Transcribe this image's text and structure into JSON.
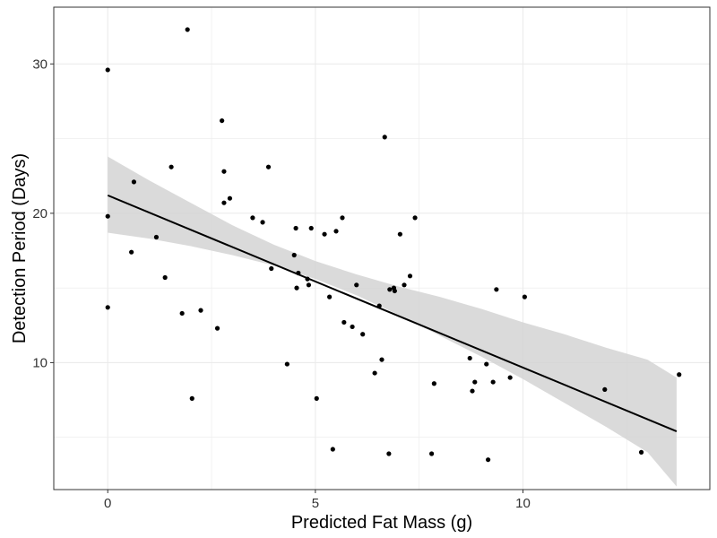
{
  "chart_data": {
    "type": "scatter",
    "title": "",
    "xlabel": "Predicted Fat Mass (g)",
    "ylabel": "Detection Period (Days)",
    "xlim": [
      -1.3,
      14.5
    ],
    "ylim": [
      1.5,
      33.8
    ],
    "x_ticks": [
      0,
      5,
      10
    ],
    "y_ticks": [
      10,
      20,
      30
    ],
    "x_minor_ticks": [
      2.5,
      7.5,
      12.5
    ],
    "y_minor_ticks": [
      5,
      15,
      25
    ],
    "grid": true,
    "legend": "none",
    "colors": {
      "point": "#000000",
      "line": "#000000",
      "band": "#d3d3d3",
      "grid": "#ebebeb",
      "border": "#333333"
    },
    "points": [
      {
        "x": 0.0,
        "y": 29.6
      },
      {
        "x": 0.0,
        "y": 19.8
      },
      {
        "x": 0.0,
        "y": 13.7
      },
      {
        "x": 0.57,
        "y": 17.4
      },
      {
        "x": 0.63,
        "y": 22.1
      },
      {
        "x": 1.17,
        "y": 18.4
      },
      {
        "x": 1.38,
        "y": 15.7
      },
      {
        "x": 1.53,
        "y": 23.1
      },
      {
        "x": 1.79,
        "y": 13.3
      },
      {
        "x": 1.92,
        "y": 32.3
      },
      {
        "x": 2.03,
        "y": 7.6
      },
      {
        "x": 2.24,
        "y": 13.5
      },
      {
        "x": 2.64,
        "y": 12.3
      },
      {
        "x": 2.75,
        "y": 26.2
      },
      {
        "x": 2.8,
        "y": 22.8
      },
      {
        "x": 2.8,
        "y": 20.7
      },
      {
        "x": 2.94,
        "y": 21.0
      },
      {
        "x": 3.49,
        "y": 19.7
      },
      {
        "x": 3.73,
        "y": 19.4
      },
      {
        "x": 3.87,
        "y": 23.1
      },
      {
        "x": 3.94,
        "y": 16.3
      },
      {
        "x": 4.32,
        "y": 9.9
      },
      {
        "x": 4.49,
        "y": 17.2
      },
      {
        "x": 4.53,
        "y": 19.0
      },
      {
        "x": 4.55,
        "y": 15.0
      },
      {
        "x": 4.59,
        "y": 16.0
      },
      {
        "x": 4.81,
        "y": 15.6
      },
      {
        "x": 4.84,
        "y": 15.2
      },
      {
        "x": 4.9,
        "y": 19.0
      },
      {
        "x": 5.03,
        "y": 7.6
      },
      {
        "x": 5.22,
        "y": 18.6
      },
      {
        "x": 5.34,
        "y": 14.4
      },
      {
        "x": 5.42,
        "y": 4.2
      },
      {
        "x": 5.5,
        "y": 18.8
      },
      {
        "x": 5.65,
        "y": 19.7
      },
      {
        "x": 5.69,
        "y": 12.7
      },
      {
        "x": 5.89,
        "y": 12.4
      },
      {
        "x": 5.99,
        "y": 15.2
      },
      {
        "x": 6.14,
        "y": 11.9
      },
      {
        "x": 6.43,
        "y": 9.3
      },
      {
        "x": 6.54,
        "y": 13.8
      },
      {
        "x": 6.6,
        "y": 10.2
      },
      {
        "x": 6.67,
        "y": 25.1
      },
      {
        "x": 6.77,
        "y": 3.9
      },
      {
        "x": 6.79,
        "y": 14.9
      },
      {
        "x": 6.89,
        "y": 15.0
      },
      {
        "x": 6.91,
        "y": 14.8
      },
      {
        "x": 7.04,
        "y": 18.6
      },
      {
        "x": 7.14,
        "y": 15.2
      },
      {
        "x": 7.28,
        "y": 15.8
      },
      {
        "x": 7.4,
        "y": 19.7
      },
      {
        "x": 7.8,
        "y": 3.9
      },
      {
        "x": 7.86,
        "y": 8.6
      },
      {
        "x": 8.72,
        "y": 10.3
      },
      {
        "x": 8.78,
        "y": 8.1
      },
      {
        "x": 8.84,
        "y": 8.7
      },
      {
        "x": 9.12,
        "y": 9.9
      },
      {
        "x": 9.16,
        "y": 3.5
      },
      {
        "x": 9.28,
        "y": 8.7
      },
      {
        "x": 9.36,
        "y": 14.9
      },
      {
        "x": 9.69,
        "y": 9.0
      },
      {
        "x": 10.04,
        "y": 14.4
      },
      {
        "x": 11.97,
        "y": 8.2
      },
      {
        "x": 12.85,
        "y": 4.0
      },
      {
        "x": 13.76,
        "y": 9.2
      }
    ],
    "fit_line": {
      "x": [
        0,
        13.7
      ],
      "y": [
        21.2,
        5.4
      ]
    },
    "confidence_band": {
      "x": [
        0,
        1.0,
        2.0,
        3.0,
        4.0,
        5.0,
        6.0,
        7.0,
        8.0,
        9.0,
        10.0,
        11.0,
        12.0,
        13.0,
        13.7
      ],
      "lower": [
        18.7,
        18.3,
        17.8,
        17.2,
        16.5,
        15.6,
        14.5,
        13.2,
        11.8,
        10.4,
        8.9,
        7.3,
        5.7,
        4.0,
        1.7
      ],
      "upper": [
        23.8,
        22.2,
        20.7,
        19.2,
        17.9,
        16.8,
        15.9,
        15.1,
        14.4,
        13.6,
        12.7,
        11.9,
        11.0,
        10.2,
        9.0
      ]
    }
  }
}
